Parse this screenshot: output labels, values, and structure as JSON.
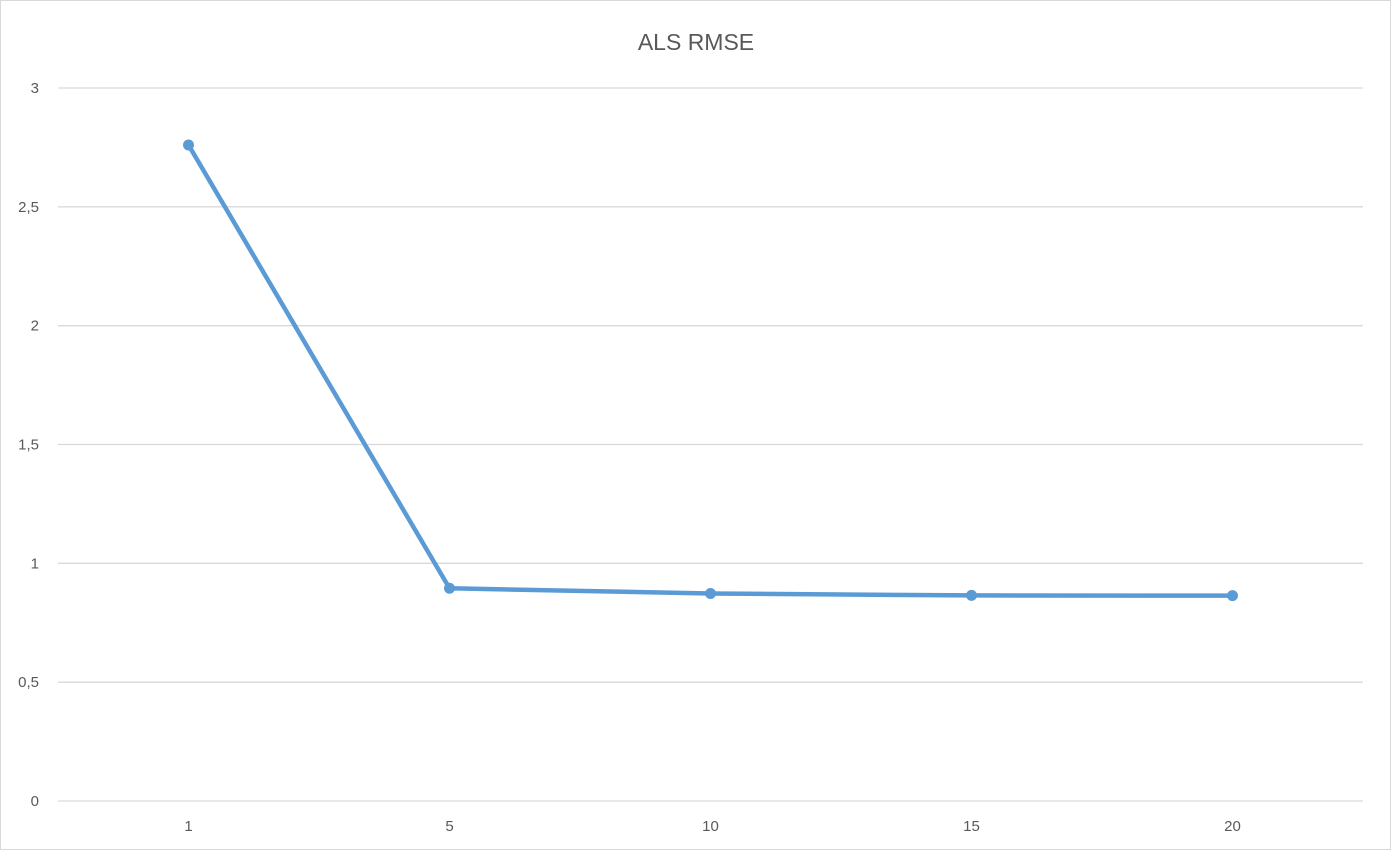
{
  "chart_data": {
    "type": "line",
    "title": "ALS RMSE",
    "xlabel": "",
    "ylabel": "",
    "categories": [
      "1",
      "5",
      "10",
      "15",
      "20"
    ],
    "series": [
      {
        "values": [
          2.76,
          0.895,
          0.873,
          0.865,
          0.864
        ]
      }
    ],
    "ylim": [
      0,
      3
    ],
    "y_ticks": [
      {
        "value": 0,
        "label": "0"
      },
      {
        "value": 0.5,
        "label": "0,5"
      },
      {
        "value": 1,
        "label": "1"
      },
      {
        "value": 1.5,
        "label": "1,5"
      },
      {
        "value": 2,
        "label": "2"
      },
      {
        "value": 2.5,
        "label": "2,5"
      },
      {
        "value": 3,
        "label": "3"
      }
    ],
    "grid": true,
    "legend": "none",
    "colors": {
      "series": "#5b9bd5",
      "grid": "#d9d9d9",
      "text": "#595959"
    }
  }
}
